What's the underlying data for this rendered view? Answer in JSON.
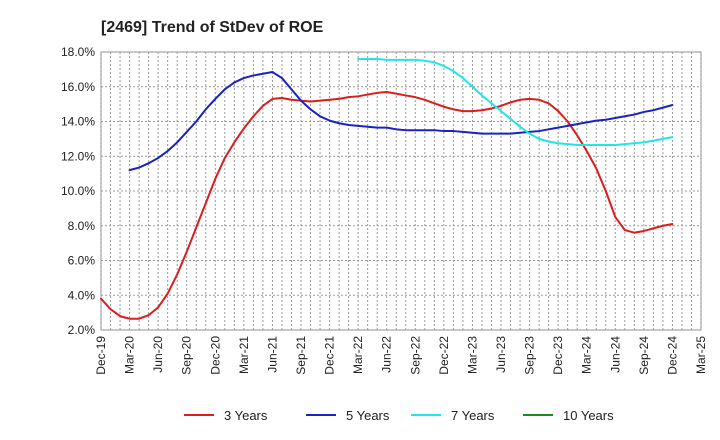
{
  "chart_data": {
    "type": "line",
    "title": "[2469]  Trend of StDev of ROE",
    "xlabel": "",
    "ylabel": "",
    "x_ticks": [
      "Dec-19",
      "Mar-20",
      "Jun-20",
      "Sep-20",
      "Dec-20",
      "Mar-21",
      "Jun-21",
      "Sep-21",
      "Dec-21",
      "Mar-22",
      "Jun-22",
      "Sep-22",
      "Dec-22",
      "Mar-23",
      "Jun-23",
      "Sep-23",
      "Dec-23",
      "Mar-24",
      "Jun-24",
      "Sep-24",
      "Dec-24",
      "Mar-25"
    ],
    "y_ticks": [
      "2.0%",
      "4.0%",
      "6.0%",
      "8.0%",
      "10.0%",
      "12.0%",
      "14.0%",
      "16.0%",
      "18.0%"
    ],
    "ylim": [
      2.0,
      18.0
    ],
    "grid": true,
    "legend_position": "bottom",
    "series": [
      {
        "name": "3 Years",
        "color": "#dd1c1c",
        "points": [
          [
            "Dec-19",
            3.8
          ],
          [
            "Jan-20",
            3.2
          ],
          [
            "Feb-20",
            2.8
          ],
          [
            "Mar-20",
            2.65
          ],
          [
            "Apr-20",
            2.65
          ],
          [
            "May-20",
            2.85
          ],
          [
            "Jun-20",
            3.3
          ],
          [
            "Jul-20",
            4.1
          ],
          [
            "Aug-20",
            5.2
          ],
          [
            "Sep-20",
            6.5
          ],
          [
            "Oct-20",
            7.9
          ],
          [
            "Nov-20",
            9.3
          ],
          [
            "Dec-20",
            10.7
          ],
          [
            "Jan-21",
            11.9
          ],
          [
            "Feb-21",
            12.8
          ],
          [
            "Mar-21",
            13.6
          ],
          [
            "Apr-21",
            14.3
          ],
          [
            "May-21",
            14.9
          ],
          [
            "Jun-21",
            15.3
          ],
          [
            "Jul-21",
            15.35
          ],
          [
            "Aug-21",
            15.25
          ],
          [
            "Sep-21",
            15.2
          ],
          [
            "Oct-21",
            15.15
          ],
          [
            "Nov-21",
            15.2
          ],
          [
            "Dec-21",
            15.25
          ],
          [
            "Jan-22",
            15.3
          ],
          [
            "Feb-22",
            15.4
          ],
          [
            "Mar-22",
            15.45
          ],
          [
            "Apr-22",
            15.55
          ],
          [
            "May-22",
            15.65
          ],
          [
            "Jun-22",
            15.7
          ],
          [
            "Jul-22",
            15.6
          ],
          [
            "Aug-22",
            15.5
          ],
          [
            "Sep-22",
            15.4
          ],
          [
            "Oct-22",
            15.25
          ],
          [
            "Nov-22",
            15.05
          ],
          [
            "Dec-22",
            14.85
          ],
          [
            "Jan-23",
            14.7
          ],
          [
            "Feb-23",
            14.6
          ],
          [
            "Mar-23",
            14.6
          ],
          [
            "Apr-23",
            14.65
          ],
          [
            "May-23",
            14.75
          ],
          [
            "Jun-23",
            14.9
          ],
          [
            "Jul-23",
            15.1
          ],
          [
            "Aug-23",
            15.25
          ],
          [
            "Sep-23",
            15.3
          ],
          [
            "Oct-23",
            15.25
          ],
          [
            "Nov-23",
            15.05
          ],
          [
            "Dec-23",
            14.6
          ],
          [
            "Jan-24",
            14.0
          ],
          [
            "Feb-24",
            13.2
          ],
          [
            "Mar-24",
            12.3
          ],
          [
            "Apr-24",
            11.3
          ],
          [
            "May-24",
            10.0
          ],
          [
            "Jun-24",
            8.5
          ],
          [
            "Jul-24",
            7.75
          ],
          [
            "Aug-24",
            7.6
          ],
          [
            "Sep-24",
            7.7
          ],
          [
            "Oct-24",
            7.85
          ],
          [
            "Nov-24",
            8.0
          ],
          [
            "Dec-24",
            8.1
          ]
        ]
      },
      {
        "name": "5 Years",
        "color": "#1a22c4",
        "points": [
          [
            "Mar-20",
            11.2
          ],
          [
            "Apr-20",
            11.35
          ],
          [
            "May-20",
            11.6
          ],
          [
            "Jun-20",
            11.9
          ],
          [
            "Jul-20",
            12.3
          ],
          [
            "Aug-20",
            12.8
          ],
          [
            "Sep-20",
            13.4
          ],
          [
            "Oct-20",
            14.0
          ],
          [
            "Nov-20",
            14.7
          ],
          [
            "Dec-20",
            15.3
          ],
          [
            "Jan-21",
            15.85
          ],
          [
            "Feb-21",
            16.25
          ],
          [
            "Mar-21",
            16.5
          ],
          [
            "Apr-21",
            16.65
          ],
          [
            "May-21",
            16.75
          ],
          [
            "Jun-21",
            16.85
          ],
          [
            "Jul-21",
            16.5
          ],
          [
            "Aug-21",
            15.85
          ],
          [
            "Sep-21",
            15.2
          ],
          [
            "Oct-21",
            14.7
          ],
          [
            "Nov-21",
            14.3
          ],
          [
            "Dec-21",
            14.05
          ],
          [
            "Jan-22",
            13.9
          ],
          [
            "Feb-22",
            13.8
          ],
          [
            "Mar-22",
            13.75
          ],
          [
            "Apr-22",
            13.7
          ],
          [
            "May-22",
            13.65
          ],
          [
            "Jun-22",
            13.65
          ],
          [
            "Jul-22",
            13.55
          ],
          [
            "Aug-22",
            13.5
          ],
          [
            "Sep-22",
            13.5
          ],
          [
            "Oct-22",
            13.5
          ],
          [
            "Nov-22",
            13.5
          ],
          [
            "Dec-22",
            13.45
          ],
          [
            "Jan-23",
            13.45
          ],
          [
            "Feb-23",
            13.4
          ],
          [
            "Mar-23",
            13.35
          ],
          [
            "Apr-23",
            13.3
          ],
          [
            "May-23",
            13.3
          ],
          [
            "Jun-23",
            13.3
          ],
          [
            "Jul-23",
            13.3
          ],
          [
            "Aug-23",
            13.35
          ],
          [
            "Sep-23",
            13.4
          ],
          [
            "Oct-23",
            13.45
          ],
          [
            "Nov-23",
            13.55
          ],
          [
            "Dec-23",
            13.65
          ],
          [
            "Jan-24",
            13.75
          ],
          [
            "Feb-24",
            13.85
          ],
          [
            "Mar-24",
            13.95
          ],
          [
            "Apr-24",
            14.05
          ],
          [
            "May-24",
            14.1
          ],
          [
            "Jun-24",
            14.2
          ],
          [
            "Jul-24",
            14.3
          ],
          [
            "Aug-24",
            14.4
          ],
          [
            "Sep-24",
            14.55
          ],
          [
            "Oct-24",
            14.65
          ],
          [
            "Nov-24",
            14.8
          ],
          [
            "Dec-24",
            14.95
          ]
        ]
      },
      {
        "name": "7 Years",
        "color": "#22e6e6",
        "points": [
          [
            "Mar-22",
            17.6
          ],
          [
            "Apr-22",
            17.6
          ],
          [
            "May-22",
            17.6
          ],
          [
            "Jun-22",
            17.55
          ],
          [
            "Jul-22",
            17.55
          ],
          [
            "Aug-22",
            17.55
          ],
          [
            "Sep-22",
            17.55
          ],
          [
            "Oct-22",
            17.5
          ],
          [
            "Nov-22",
            17.4
          ],
          [
            "Dec-22",
            17.2
          ],
          [
            "Jan-23",
            16.9
          ],
          [
            "Feb-23",
            16.5
          ],
          [
            "Mar-23",
            16.0
          ],
          [
            "Apr-23",
            15.5
          ],
          [
            "May-23",
            15.05
          ],
          [
            "Jun-23",
            14.6
          ],
          [
            "Jul-23",
            14.15
          ],
          [
            "Aug-23",
            13.7
          ],
          [
            "Sep-23",
            13.3
          ],
          [
            "Oct-23",
            13.0
          ],
          [
            "Nov-23",
            12.85
          ],
          [
            "Dec-23",
            12.75
          ],
          [
            "Jan-24",
            12.7
          ],
          [
            "Feb-24",
            12.65
          ],
          [
            "Mar-24",
            12.65
          ],
          [
            "Apr-24",
            12.65
          ],
          [
            "May-24",
            12.65
          ],
          [
            "Jun-24",
            12.65
          ],
          [
            "Jul-24",
            12.7
          ],
          [
            "Aug-24",
            12.75
          ],
          [
            "Sep-24",
            12.8
          ],
          [
            "Oct-24",
            12.9
          ],
          [
            "Nov-24",
            13.0
          ],
          [
            "Dec-24",
            13.1
          ]
        ]
      },
      {
        "name": "10 Years",
        "color": "#1f8a1f",
        "points": []
      }
    ]
  }
}
